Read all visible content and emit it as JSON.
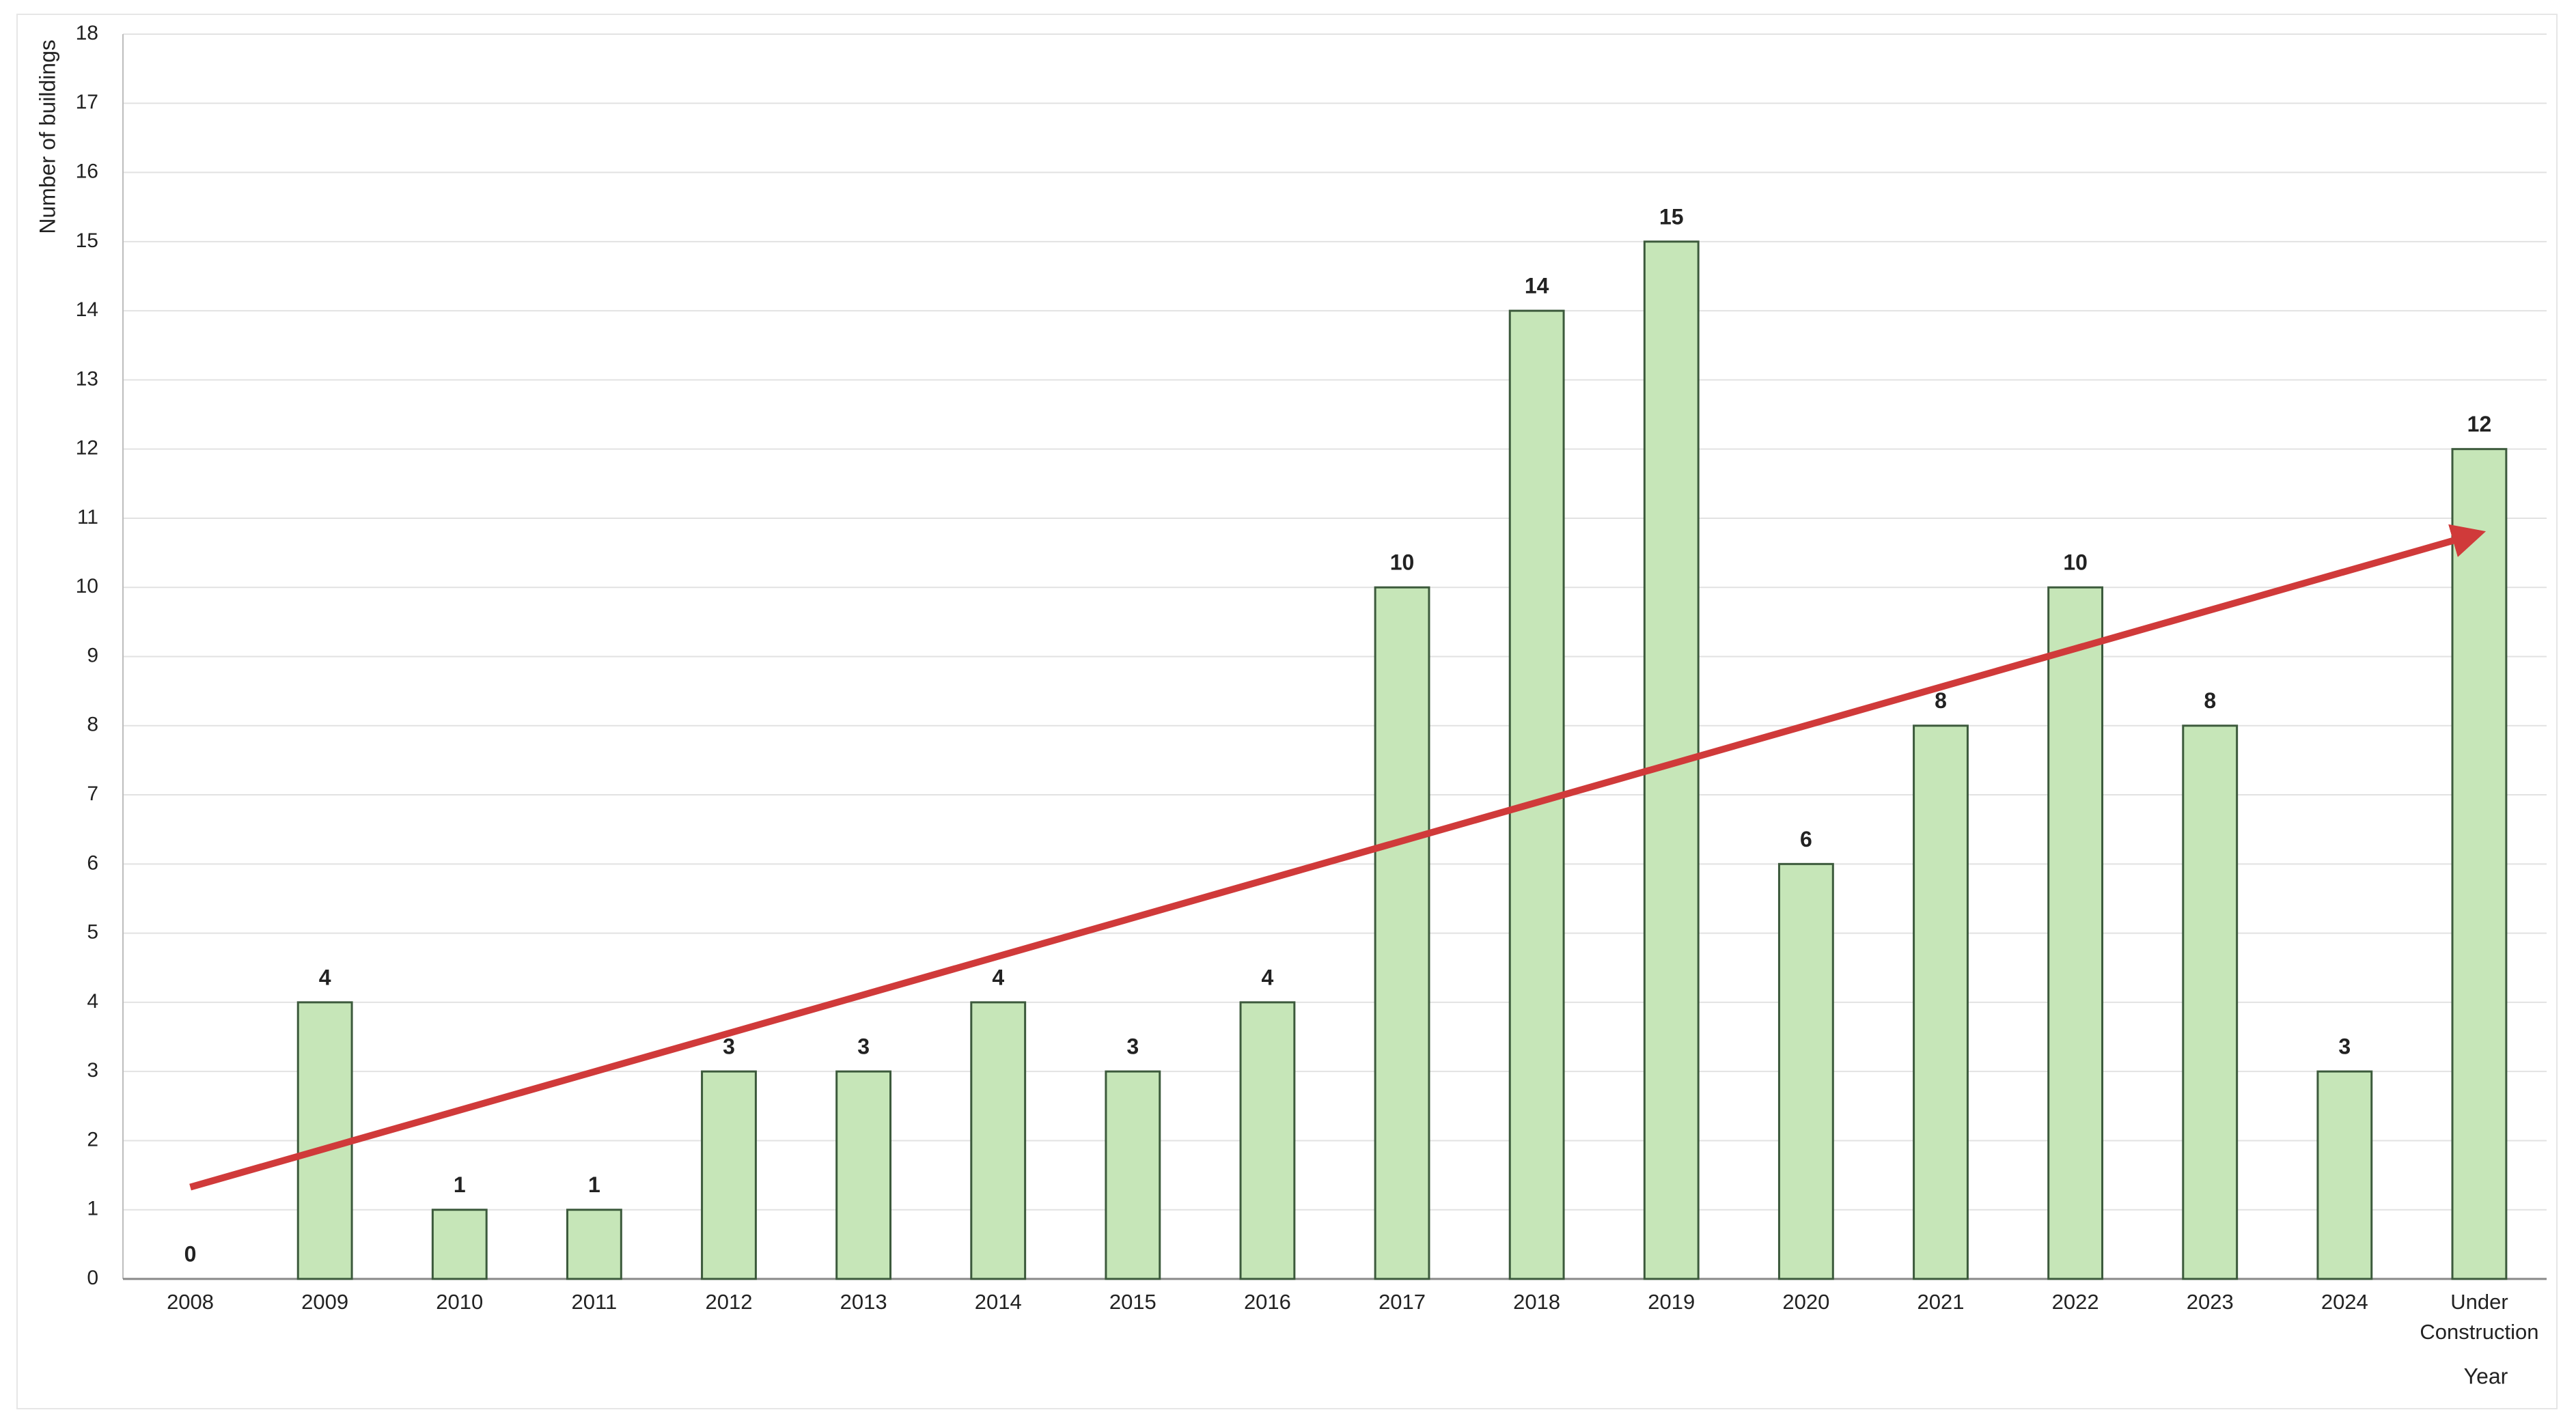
{
  "chart_data": {
    "type": "bar",
    "y_label": "Number of buildings",
    "x_label": "Year",
    "categories": [
      "2008",
      "2009",
      "2010",
      "2011",
      "2012",
      "2013",
      "2014",
      "2015",
      "2016",
      "2017",
      "2018",
      "2019",
      "2020",
      "2021",
      "2022",
      "2023",
      "2024",
      "Under Construction"
    ],
    "values": [
      0,
      4,
      1,
      1,
      3,
      3,
      4,
      3,
      4,
      10,
      14,
      15,
      6,
      8,
      10,
      8,
      3,
      12
    ],
    "color": "#c6e6b8",
    "ylim": [
      0,
      18
    ],
    "yticks": [
      0,
      1,
      2,
      3,
      4,
      5,
      6,
      7,
      8,
      9,
      10,
      11,
      12,
      13,
      14,
      15,
      16,
      17,
      18
    ],
    "grid": true,
    "trendline": "linear",
    "trendline_color": "#d03a3a"
  }
}
